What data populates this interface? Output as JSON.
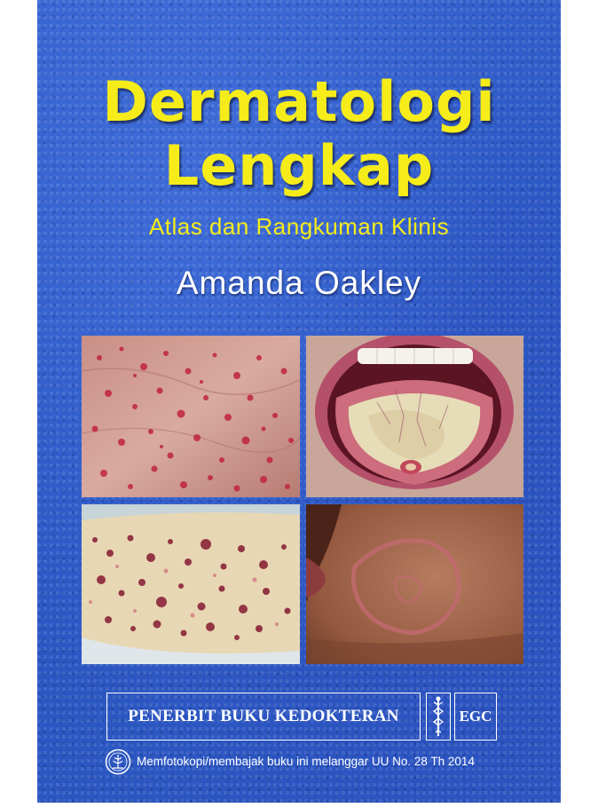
{
  "cover": {
    "background_color": "#2d59c6",
    "accent_color": "#f5ec1a",
    "title_line1": "Dermatologi",
    "title_line2": "Lengkap",
    "subtitle": "Atlas dan Rangkuman Klinis",
    "author": "Amanda Oakley"
  },
  "photos": [
    {
      "icon": "skin-rash-photo"
    },
    {
      "icon": "tongue-photo"
    },
    {
      "icon": "leg-rash-photo"
    },
    {
      "icon": "ring-lesion-photo"
    }
  ],
  "publisher": {
    "name": "PENERBIT BUKU KEDOKTERAN",
    "abbr": "EGC",
    "logo_icon": "caduceus-icon"
  },
  "footer": {
    "seal_icon": "seal-icon",
    "notice": "Memfotokopi/membajak buku ini melanggar UU No. 28 Th 2014"
  }
}
